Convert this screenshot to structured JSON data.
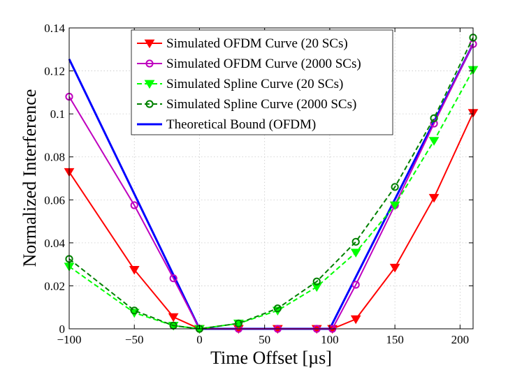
{
  "chart_data": {
    "type": "line",
    "title": "",
    "xlabel": "Time Offset [µs]",
    "ylabel": "Normalized Interference",
    "xlim": [
      -100,
      210
    ],
    "ylim": [
      0,
      0.14
    ],
    "x_ticks": [
      -100,
      -50,
      0,
      50,
      100,
      150,
      200
    ],
    "y_ticks": [
      0,
      0.02,
      0.04,
      0.06,
      0.08,
      0.1,
      0.12,
      0.14
    ],
    "x_tick_labels": [
      "−100",
      "−50",
      "0",
      "50",
      "100",
      "150",
      "200"
    ],
    "y_tick_labels": [
      "0",
      "0.02",
      "0.04",
      "0.06",
      "0.08",
      "0.1",
      "0.12",
      "0.14"
    ],
    "grid": true,
    "legend_position": "top-center",
    "series": [
      {
        "name": "Simulated OFDM Curve (20 SCs)",
        "color": "#ff0000",
        "line": "solid",
        "marker": "triangle-down",
        "x": [
          -100,
          -50,
          -20,
          0,
          30,
          60,
          90,
          102,
          120,
          150,
          180,
          210
        ],
        "y": [
          0.073,
          0.0275,
          0.0055,
          0,
          0,
          0,
          0,
          0,
          0.0045,
          0.0285,
          0.061,
          0.1005
        ]
      },
      {
        "name": "Simulated OFDM Curve (2000 SCs)",
        "color": "#bf00bf",
        "line": "solid",
        "marker": "circle",
        "x": [
          -100,
          -50,
          -20,
          0,
          30,
          60,
          90,
          102,
          120,
          150,
          180,
          210
        ],
        "y": [
          0.108,
          0.0575,
          0.0235,
          0,
          0,
          0,
          0,
          0,
          0.0205,
          0.0575,
          0.0955,
          0.1325
        ]
      },
      {
        "name": "Simulated Spline Curve (20 SCs)",
        "color": "#00ff00",
        "line": "dashed",
        "marker": "triangle-down",
        "x": [
          -100,
          -50,
          -20,
          0,
          30,
          60,
          90,
          120,
          150,
          180,
          210
        ],
        "y": [
          0.029,
          0.0075,
          0.0015,
          0,
          0.0025,
          0.0085,
          0.0195,
          0.0355,
          0.0575,
          0.0875,
          0.1205
        ]
      },
      {
        "name": "Simulated Spline Curve (2000 SCs)",
        "color": "#008000",
        "line": "dashed",
        "marker": "circle",
        "x": [
          -100,
          -50,
          -20,
          0,
          30,
          60,
          90,
          120,
          150,
          180,
          210
        ],
        "y": [
          0.0325,
          0.0085,
          0.0015,
          0,
          0.0025,
          0.0095,
          0.022,
          0.0405,
          0.066,
          0.098,
          0.1355
        ]
      },
      {
        "name": "Theoretical Bound (OFDM)",
        "color": "#0000ff",
        "line": "solid",
        "marker": "none",
        "x": [
          -100,
          0,
          100,
          210
        ],
        "y": [
          0.1255,
          0,
          0,
          0.1325
        ]
      }
    ]
  }
}
